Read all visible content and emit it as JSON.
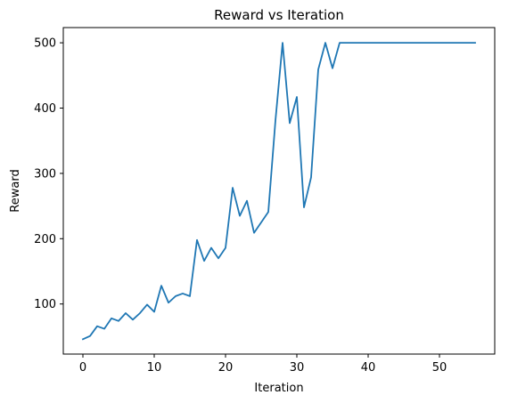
{
  "chart_data": {
    "type": "line",
    "title": "Reward vs Iteration",
    "xlabel": "Iteration",
    "ylabel": "Reward",
    "xlim": [
      -2.75,
      57.75
    ],
    "ylim": [
      23.3,
      523.3
    ],
    "xticks": [
      0,
      10,
      20,
      30,
      40,
      50
    ],
    "yticks": [
      100,
      200,
      300,
      400,
      500
    ],
    "grid": false,
    "legend": "none",
    "series": [
      {
        "color": "#1f77b4",
        "x": [
          0,
          1,
          2,
          3,
          4,
          5,
          6,
          7,
          8,
          9,
          10,
          11,
          12,
          13,
          14,
          15,
          16,
          17,
          18,
          19,
          20,
          21,
          22,
          23,
          24,
          25,
          26,
          27,
          28,
          29,
          30,
          31,
          32,
          33,
          34,
          35,
          36,
          37,
          38,
          39,
          40,
          41,
          42,
          43,
          44,
          45,
          46,
          47,
          48,
          49,
          50,
          51,
          52,
          53,
          54,
          55
        ],
        "values": [
          46,
          51,
          66,
          62,
          78,
          74,
          86,
          76,
          86,
          99,
          88,
          128,
          102,
          112,
          116,
          112,
          198,
          166,
          186,
          170,
          186,
          278,
          235,
          258,
          209,
          225,
          241,
          381,
          500,
          377,
          417,
          248,
          294,
          459,
          500,
          461,
          500,
          500,
          500,
          500,
          500,
          500,
          500,
          500,
          500,
          500,
          500,
          500,
          500,
          500,
          500,
          500,
          500,
          500,
          500,
          500
        ]
      }
    ]
  }
}
